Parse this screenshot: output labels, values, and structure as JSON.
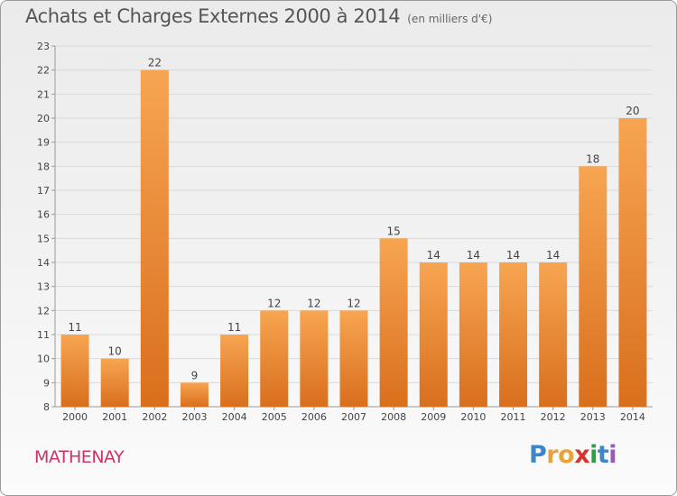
{
  "header": {
    "title": "Achats et Charges Externes 2000 à 2014",
    "unit": "(en milliers d'€)"
  },
  "footer": {
    "commune": "MATHENAY",
    "logo_letters": [
      "P",
      "r",
      "o",
      "x",
      "i",
      "t",
      "i"
    ],
    "logo_colors": [
      "#3b87c9",
      "#e8a33a",
      "#e8a33a",
      "#d6332f",
      "#2f9e49",
      "#3b87c9",
      "#9b59b6"
    ]
  },
  "colors": {
    "bar_top": "#f7a552",
    "bar_bottom": "#d96f1c",
    "axis": "#9a9a9a",
    "grid": "#d9d9d9"
  },
  "chart_data": {
    "type": "bar",
    "title": "Achats et Charges Externes 2000 à 2014",
    "subtitle": "(en milliers d'€)",
    "xlabel": "",
    "ylabel": "",
    "categories": [
      "2000",
      "2001",
      "2002",
      "2003",
      "2004",
      "2005",
      "2006",
      "2007",
      "2008",
      "2009",
      "2010",
      "2011",
      "2012",
      "2013",
      "2014"
    ],
    "values": [
      11,
      10,
      22,
      9,
      11,
      12,
      12,
      12,
      15,
      14,
      14,
      14,
      14,
      18,
      20
    ],
    "ylim": [
      8,
      23
    ],
    "yticks": [
      8,
      9,
      10,
      11,
      12,
      13,
      14,
      15,
      16,
      17,
      18,
      19,
      20,
      21,
      22,
      23
    ],
    "grid": true,
    "legend": "none"
  }
}
